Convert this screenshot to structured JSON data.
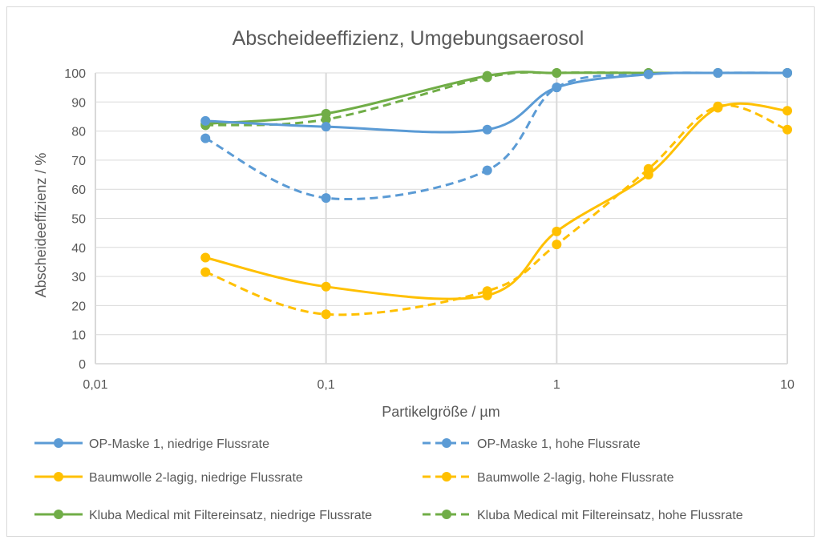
{
  "chart_data": {
    "type": "line",
    "title": "Abscheideeffizienz, Umgebungsaerosol",
    "xlabel": "Partikelgröße / µm",
    "ylabel": "Abscheideeffizienz / %",
    "x_scale": "log",
    "xlim": [
      0.01,
      10
    ],
    "ylim": [
      0,
      100
    ],
    "x_ticks": [
      0.01,
      0.1,
      1,
      10
    ],
    "x_tick_labels": [
      "0,01",
      "0,1",
      "1",
      "10"
    ],
    "y_ticks": [
      0,
      10,
      20,
      30,
      40,
      50,
      60,
      70,
      80,
      90,
      100
    ],
    "y_tick_labels": [
      "0",
      "10",
      "20",
      "30",
      "40",
      "50",
      "60",
      "70",
      "80",
      "90",
      "100"
    ],
    "grid": true,
    "legend_position": "bottom",
    "series": [
      {
        "name": "OP-Maske 1, niedrige Flussrate",
        "color": "#5b9bd5",
        "dashed": false,
        "x": [
          0.03,
          0.1,
          0.5,
          1,
          2.5,
          5,
          10
        ],
        "y": [
          83.5,
          81.5,
          80.5,
          95,
          99.5,
          100,
          100
        ]
      },
      {
        "name": "OP-Maske 1, hohe Flussrate",
        "color": "#5b9bd5",
        "dashed": true,
        "x": [
          0.03,
          0.1,
          0.5,
          1,
          2.5,
          5,
          10
        ],
        "y": [
          77.5,
          57,
          66.5,
          95,
          99.5,
          100,
          100
        ]
      },
      {
        "name": "Baumwolle 2-lagig, niedrige Flussrate",
        "color": "#ffc000",
        "dashed": false,
        "x": [
          0.03,
          0.1,
          0.5,
          1,
          2.5,
          5,
          10
        ],
        "y": [
          36.5,
          26.5,
          23.5,
          45.5,
          65,
          88,
          87
        ]
      },
      {
        "name": "Baumwolle 2-lagig, hohe Flussrate",
        "color": "#ffc000",
        "dashed": true,
        "x": [
          0.03,
          0.1,
          0.5,
          1,
          2.5,
          5,
          10
        ],
        "y": [
          31.5,
          17,
          25,
          41,
          67,
          88.5,
          80.5
        ]
      },
      {
        "name": "Kluba Medical mit Filtereinsatz, niedrige Flussrate",
        "color": "#70ad47",
        "dashed": false,
        "x": [
          0.03,
          0.1,
          0.5,
          1,
          2.5,
          5,
          10
        ],
        "y": [
          82.5,
          86,
          99,
          100,
          100,
          100,
          100
        ]
      },
      {
        "name": "Kluba Medical mit Filtereinsatz, hohe Flussrate",
        "color": "#70ad47",
        "dashed": true,
        "x": [
          0.03,
          0.1,
          0.5,
          1,
          2.5,
          5,
          10
        ],
        "y": [
          82,
          84,
          98.5,
          100,
          100,
          100,
          100
        ]
      }
    ]
  }
}
